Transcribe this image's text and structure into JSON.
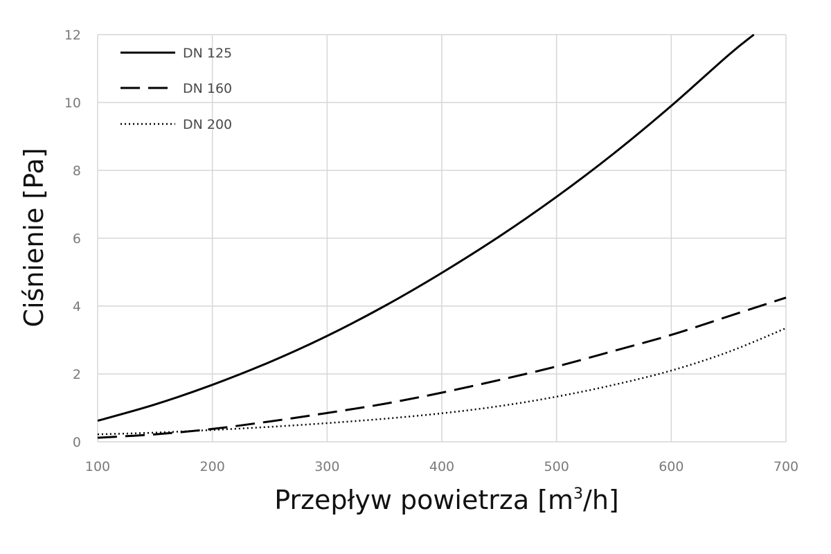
{
  "chart_data": {
    "type": "line",
    "title": "",
    "xlabel_main": "Przepływ powietrza [m",
    "xlabel_sup": "3",
    "xlabel_tail": "/h]",
    "ylabel": "Ciśnienie [Pa]",
    "xlim": [
      100,
      700
    ],
    "ylim": [
      0,
      12
    ],
    "xticks": [
      100,
      200,
      300,
      400,
      500,
      600,
      700
    ],
    "yticks": [
      0,
      2,
      4,
      6,
      8,
      10,
      12
    ],
    "grid": true,
    "legend_position": "top-left",
    "series": [
      {
        "name": "DN 125",
        "style": "solid",
        "color": "#000000",
        "x": [
          100,
          150,
          200,
          250,
          300,
          350,
          400,
          450,
          500,
          550,
          600,
          650,
          672
        ],
        "y": [
          0.62,
          1.1,
          1.68,
          2.35,
          3.12,
          4.0,
          4.98,
          6.05,
          7.22,
          8.5,
          9.9,
          11.4,
          12.0
        ]
      },
      {
        "name": "DN 160",
        "style": "dashed",
        "color": "#000000",
        "x": [
          100,
          150,
          200,
          250,
          300,
          350,
          400,
          450,
          500,
          550,
          600,
          650,
          700
        ],
        "y": [
          0.12,
          0.22,
          0.38,
          0.6,
          0.85,
          1.12,
          1.45,
          1.82,
          2.22,
          2.68,
          3.15,
          3.7,
          4.25
        ]
      },
      {
        "name": "DN 200",
        "style": "dotted",
        "color": "#000000",
        "x": [
          100,
          150,
          200,
          250,
          300,
          350,
          400,
          450,
          500,
          550,
          600,
          650,
          700
        ],
        "y": [
          0.22,
          0.27,
          0.35,
          0.44,
          0.55,
          0.68,
          0.84,
          1.05,
          1.33,
          1.68,
          2.1,
          2.65,
          3.35
        ]
      }
    ]
  }
}
